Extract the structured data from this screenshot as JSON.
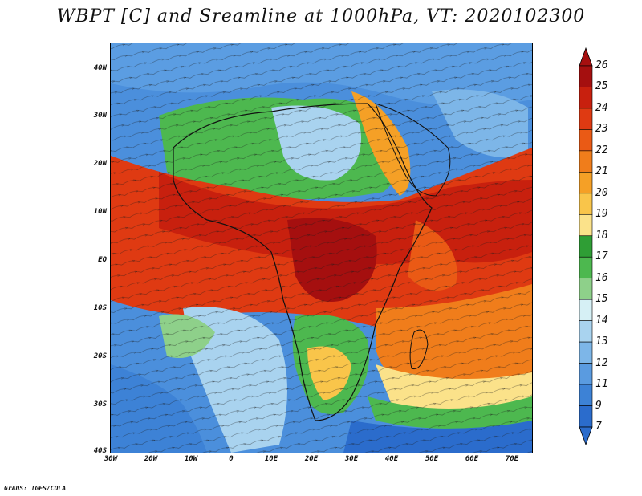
{
  "title": "WBPT [C] and Sreamline at 1000hPa, VT: 2020102300",
  "credit": "GrADS: IGES/COLA",
  "map": {
    "lat_labels": [
      "40N",
      "30N",
      "20N",
      "10N",
      "EQ",
      "10S",
      "20S",
      "30S",
      "40S"
    ],
    "lon_labels": [
      "30W",
      "20W",
      "10W",
      "0",
      "10E",
      "20E",
      "30E",
      "40E",
      "50E",
      "60E",
      "70E"
    ],
    "lat_range": [
      -40,
      45
    ],
    "lon_range": [
      -30,
      75
    ]
  },
  "colorbar": {
    "levels": [
      "26",
      "25",
      "24",
      "23",
      "22",
      "21",
      "20",
      "19",
      "18",
      "17",
      "16",
      "15",
      "14",
      "13",
      "12",
      "11",
      "9",
      "7"
    ],
    "colors": [
      "#a50f0f",
      "#c8200e",
      "#df3a12",
      "#ea5a15",
      "#f07d1b",
      "#f5a026",
      "#f9c54a",
      "#fbe28a",
      "#2f9e35",
      "#4db84f",
      "#8ed08a",
      "#d6f0f5",
      "#a9d3ef",
      "#7db6e8",
      "#5a9be0",
      "#3d82d6",
      "#2b6ccc"
    ],
    "top_color": "#a50f0f",
    "bottom_color": "#2b6ccc"
  }
}
